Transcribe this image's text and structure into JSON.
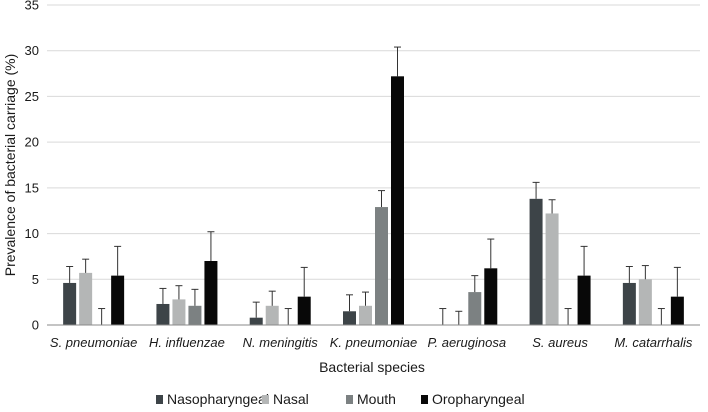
{
  "chart_data": {
    "type": "bar",
    "title": "",
    "xlabel": "Bacterial species",
    "ylabel": "Prevalence of bacterial carriage (%)",
    "ylim": [
      0,
      35
    ],
    "yticks": [
      0,
      5,
      10,
      15,
      20,
      25,
      30,
      35
    ],
    "grid": true,
    "legend_position": "bottom",
    "categories": [
      "S. pneumoniae",
      "H. influenzae",
      "N. meningitis",
      "K. pneumoniae",
      "P. aeruginosa",
      "S. aureus",
      "M. catarrhalis"
    ],
    "series": [
      {
        "name": "Nasopharyngeal",
        "color": "#3d4448",
        "values": [
          4.6,
          2.3,
          0.8,
          1.5,
          0,
          13.8,
          4.6
        ],
        "errors": [
          1.8,
          1.7,
          1.7,
          1.8,
          1.8,
          1.8,
          1.8
        ]
      },
      {
        "name": "Nasal",
        "color": "#b4b6b6",
        "values": [
          5.7,
          2.8,
          2.1,
          2.1,
          0,
          12.2,
          5.0
        ],
        "errors": [
          1.5,
          1.5,
          1.6,
          1.5,
          1.5,
          1.5,
          1.5
        ]
      },
      {
        "name": "Mouth",
        "color": "#7c8182",
        "values": [
          0,
          2.1,
          0,
          12.9,
          3.6,
          0,
          0
        ],
        "errors": [
          1.8,
          1.8,
          1.8,
          1.8,
          1.8,
          1.8,
          1.8
        ]
      },
      {
        "name": "Oropharyngeal",
        "color": "#080808",
        "values": [
          5.4,
          7.0,
          3.1,
          27.2,
          6.2,
          5.4,
          3.1
        ],
        "errors": [
          3.2,
          3.2,
          3.2,
          3.2,
          3.2,
          3.2,
          3.2
        ]
      }
    ]
  }
}
